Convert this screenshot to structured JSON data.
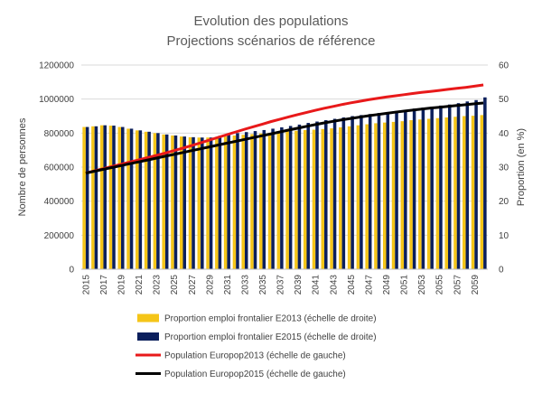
{
  "chart_data": {
    "type": "bar",
    "title": "Evolution des populations",
    "subtitle": "Projections scénarios de référence",
    "ylabel_left": "Nombre de personnes",
    "ylabel_right": "Proportion (en %)",
    "ylim_left": [
      0,
      1200000
    ],
    "ylim_right": [
      0,
      60
    ],
    "yticks_left": [
      "0",
      "200000",
      "400000",
      "600000",
      "800000",
      "1000000",
      "1200000"
    ],
    "yticks_right": [
      "0",
      "10",
      "20",
      "30",
      "40",
      "50",
      "60"
    ],
    "x_start": 2015,
    "x_end": 2060,
    "xtick_labels": [
      "2015",
      "2017",
      "2019",
      "2021",
      "2023",
      "2025",
      "2027",
      "2029",
      "2031",
      "2033",
      "2035",
      "2037",
      "2039",
      "2041",
      "2043",
      "2045",
      "2047",
      "2049",
      "2051",
      "2053",
      "2055",
      "2057",
      "2059"
    ],
    "colors": {
      "bar_e2013": "#F5C518",
      "bar_e2015": "#0B1F5C",
      "line_2013": "#E8191A",
      "line_2015": "#000000"
    },
    "series": [
      {
        "name": "Proportion emploi frontalier E2013 (échelle de droite)",
        "kind": "bar",
        "axis": "right",
        "values": [
          41.8,
          42.0,
          42.3,
          42.2,
          41.8,
          41.3,
          40.8,
          40.4,
          40.0,
          39.6,
          39.3,
          39.0,
          38.8,
          38.7,
          38.7,
          38.9,
          39.0,
          39.3,
          39.5,
          39.7,
          39.9,
          40.1,
          40.3,
          40.5,
          40.7,
          40.9,
          41.0,
          41.2,
          41.4,
          41.7,
          42.0,
          42.3,
          42.6,
          42.9,
          43.1,
          43.3,
          43.5,
          43.8,
          44.0,
          44.2,
          44.4,
          44.6,
          44.8,
          45.0,
          45.1,
          45.3
        ]
      },
      {
        "name": "Proportion emploi frontalier E2015 (échelle de droite)",
        "kind": "bar",
        "axis": "right",
        "values": [
          41.8,
          42.0,
          42.3,
          42.2,
          41.8,
          41.3,
          40.8,
          40.4,
          40.0,
          39.6,
          39.3,
          39.0,
          38.8,
          38.7,
          38.7,
          39.2,
          39.6,
          40.0,
          40.3,
          40.6,
          40.9,
          41.3,
          41.7,
          42.1,
          42.5,
          43.0,
          43.4,
          43.8,
          44.2,
          44.6,
          45.0,
          45.3,
          45.6,
          45.9,
          46.2,
          46.5,
          46.8,
          47.2,
          47.5,
          47.8,
          48.1,
          48.4,
          48.8,
          49.3,
          49.7,
          50.5
        ]
      },
      {
        "name": "Population Europop2013 (échelle de gauche)",
        "kind": "line",
        "axis": "left",
        "values": [
          565000,
          578000,
          591000,
          604000,
          617000,
          630000,
          643000,
          656000,
          669000,
          683000,
          697000,
          712000,
          727000,
          743000,
          759000,
          775000,
          791000,
          807000,
          823000,
          838000,
          853000,
          868000,
          882000,
          896000,
          909000,
          922000,
          934000,
          946000,
          957000,
          968000,
          978000,
          987000,
          996000,
          1004000,
          1012000,
          1019000,
          1026000,
          1033000,
          1039000,
          1045000,
          1051000,
          1057000,
          1063000,
          1069000,
          1076000,
          1083000
        ]
      },
      {
        "name": "Population Europop2015 (échelle de gauche)",
        "kind": "line",
        "axis": "left",
        "values": [
          565000,
          576000,
          587000,
          598000,
          609000,
          620000,
          631000,
          642000,
          653000,
          664000,
          675000,
          686000,
          697000,
          708000,
          719000,
          730000,
          741000,
          752000,
          763000,
          774000,
          785000,
          796000,
          807000,
          818000,
          829000,
          840000,
          850000,
          860000,
          869000,
          878000,
          886000,
          894000,
          902000,
          909000,
          916000,
          923000,
          929000,
          935000,
          941000,
          947000,
          952000,
          957000,
          962000,
          967000,
          972000,
          977000
        ]
      }
    ],
    "legend_position": "bottom"
  }
}
